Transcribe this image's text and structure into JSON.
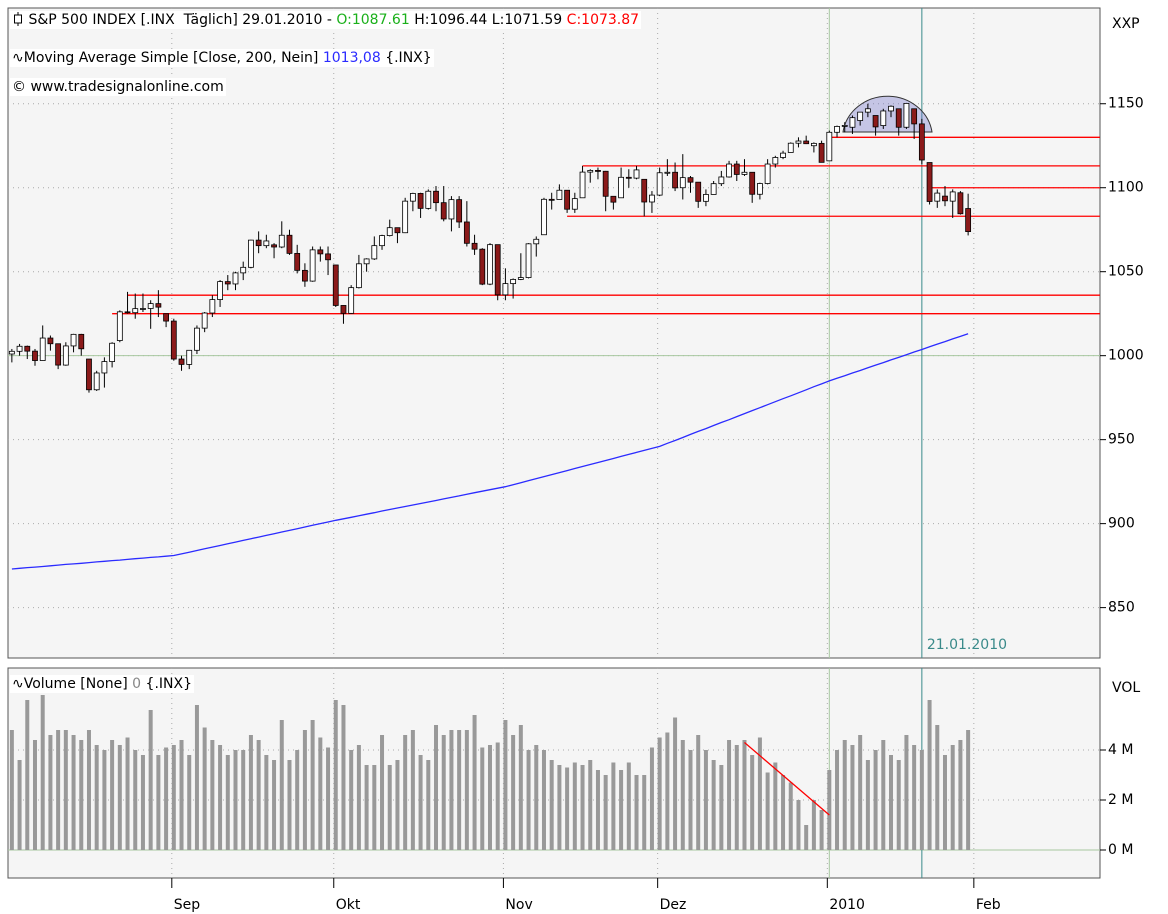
{
  "chart_data": {
    "type": "candlestick",
    "title": "S&P 500 INDEX [.INX  Täglich] 29.01.2010 -",
    "ohlc_labels": [
      "O:1087.61",
      "H:1096.44",
      "L:1071.59",
      "C:1073.87"
    ],
    "ma_name": "Moving Average Simple [Close, 200, Nein]",
    "ma_value_label": "1013,08",
    "symbol": "{.INX}",
    "copyright": "© www.tradesignalonline.com",
    "price_axis_label": "XXP",
    "volume_axis_label": "VOL",
    "volume_name": "Volume [None]",
    "volume_value_label": "0",
    "annotation": "21.01.2010",
    "annotation_index": 118,
    "year_index": 106,
    "up_color": "#ffffff",
    "down_color": "#8b1a1a",
    "ma_color": "#2b2bff",
    "volume_color": "#999999",
    "level_color": "#ff0000",
    "candles": [
      [
        1001,
        1004,
        996,
        1002.6
      ],
      [
        1002.6,
        1007,
        1000,
        1005.6
      ],
      [
        1005.6,
        1006,
        998,
        1002.7
      ],
      [
        1002.7,
        1004,
        994,
        997.1
      ],
      [
        997.1,
        1018,
        997,
        1010.5
      ],
      [
        1010.5,
        1012,
        1003,
        1007.1
      ],
      [
        1007.1,
        1007,
        992,
        994.4
      ],
      [
        994.4,
        1008,
        994,
        1005.8
      ],
      [
        1005.8,
        1013,
        1002,
        1012.7
      ],
      [
        1012.7,
        1013,
        1000,
        1004.1
      ],
      [
        998,
        998,
        978,
        979.7
      ],
      [
        979.7,
        991,
        979,
        989.7
      ],
      [
        989.7,
        999,
        981,
        996.5
      ],
      [
        996.5,
        1008,
        993,
        1007.4
      ],
      [
        1009,
        1027,
        1008,
        1026.1
      ],
      [
        1026.1,
        1038,
        1025,
        1025.6
      ],
      [
        1025.6,
        1037,
        1022,
        1028.0
      ],
      [
        1028,
        1037,
        1026,
        1028.1
      ],
      [
        1028.1,
        1033,
        1016,
        1031.0
      ],
      [
        1031,
        1039,
        1023,
        1028.9
      ],
      [
        1025,
        1025,
        1017,
        1020.6
      ],
      [
        1020.6,
        1022,
        997,
        998.0
      ],
      [
        998,
        1000,
        991,
        994.8
      ],
      [
        994.8,
        1003,
        992,
        1003.2
      ],
      [
        1003.2,
        1018,
        1001,
        1016.4
      ],
      [
        1016.4,
        1026,
        1014,
        1025.4
      ],
      [
        1025.4,
        1036,
        1023,
        1033.4
      ],
      [
        1033.4,
        1045,
        1029,
        1044.1
      ],
      [
        1044.1,
        1048,
        1039,
        1042.7
      ],
      [
        1042.7,
        1050,
        1039,
        1049.3
      ],
      [
        1049.3,
        1056,
        1045,
        1052.6
      ],
      [
        1052.6,
        1069,
        1052,
        1068.8
      ],
      [
        1068.8,
        1074,
        1061,
        1065.5
      ],
      [
        1065.5,
        1072,
        1064,
        1068.3
      ],
      [
        1066,
        1067,
        1058,
        1064.7
      ],
      [
        1064.7,
        1080,
        1064,
        1071.7
      ],
      [
        1071.7,
        1075,
        1060,
        1060.9
      ],
      [
        1060.9,
        1066,
        1049,
        1050.8
      ],
      [
        1050.8,
        1055,
        1041,
        1044.4
      ],
      [
        1044.4,
        1065,
        1044,
        1063.0
      ],
      [
        1063,
        1065,
        1056,
        1060.6
      ],
      [
        1060.6,
        1065,
        1048,
        1057.1
      ],
      [
        1054,
        1054,
        1029,
        1029.9
      ],
      [
        1029.9,
        1030,
        1019,
        1025.2
      ],
      [
        1025.2,
        1042,
        1025,
        1040.5
      ],
      [
        1040.5,
        1060,
        1040,
        1054.7
      ],
      [
        1054.7,
        1058,
        1050,
        1057.6
      ],
      [
        1057.6,
        1071,
        1057,
        1065.5
      ],
      [
        1065.5,
        1072,
        1063,
        1071.5
      ],
      [
        1071.5,
        1081,
        1071,
        1076.2
      ],
      [
        1076.2,
        1076,
        1067,
        1073.2
      ],
      [
        1073.2,
        1094,
        1073,
        1092.0
      ],
      [
        1092,
        1097,
        1086,
        1096.6
      ],
      [
        1096.6,
        1097,
        1082,
        1087.7
      ],
      [
        1087.7,
        1099,
        1087,
        1097.9
      ],
      [
        1097.9,
        1101,
        1086,
        1091.1
      ],
      [
        1091.1,
        1101,
        1080,
        1081.4
      ],
      [
        1081.4,
        1095,
        1074,
        1092.9
      ],
      [
        1092.9,
        1095,
        1076,
        1079.6
      ],
      [
        1079.6,
        1092,
        1065,
        1066.9
      ],
      [
        1066.9,
        1072,
        1060,
        1063.4
      ],
      [
        1063.4,
        1064,
        1042,
        1042.6
      ],
      [
        1042.6,
        1067,
        1042,
        1066.1
      ],
      [
        1066.1,
        1066,
        1033,
        1036.2
      ],
      [
        1036.2,
        1052,
        1033,
        1042.9
      ],
      [
        1042.9,
        1046,
        1034,
        1045.4
      ],
      [
        1045.4,
        1061,
        1045,
        1046.5
      ],
      [
        1046.5,
        1067,
        1046,
        1066.6
      ],
      [
        1066.6,
        1071,
        1059,
        1069.3
      ],
      [
        1072,
        1094,
        1072,
        1093.1
      ],
      [
        1093.1,
        1097,
        1087,
        1093.0
      ],
      [
        1093,
        1102,
        1093,
        1098.5
      ],
      [
        1098.5,
        1098,
        1085,
        1087.2
      ],
      [
        1087.2,
        1097,
        1085,
        1093.5
      ],
      [
        1094,
        1113,
        1094,
        1109.3
      ],
      [
        1109.3,
        1111,
        1103,
        1110.3
      ],
      [
        1110.3,
        1112,
        1105,
        1109.8
      ],
      [
        1109.8,
        1110,
        1086,
        1094.9
      ],
      [
        1094.9,
        1095,
        1087,
        1091.4
      ],
      [
        1094,
        1112,
        1094,
        1106.2
      ],
      [
        1106.2,
        1111,
        1100,
        1105.7
      ],
      [
        1105.7,
        1113,
        1105,
        1110.6
      ],
      [
        1105,
        1105,
        1083,
        1091.5
      ],
      [
        1091.5,
        1098,
        1085,
        1095.6
      ],
      [
        1095.6,
        1112,
        1095,
        1108.9
      ],
      [
        1108.9,
        1117,
        1107,
        1109.2
      ],
      [
        1109.2,
        1115,
        1098,
        1099.9
      ],
      [
        1100,
        1120,
        1093,
        1106.0
      ],
      [
        1106,
        1107,
        1097,
        1103.3
      ],
      [
        1103.3,
        1103,
        1088,
        1091.9
      ],
      [
        1091.9,
        1099,
        1089,
        1096.0
      ],
      [
        1096,
        1104,
        1096,
        1102.4
      ],
      [
        1102.4,
        1110,
        1101,
        1106.4
      ],
      [
        1106.4,
        1116,
        1106,
        1114.1
      ],
      [
        1114.1,
        1116,
        1104,
        1107.9
      ],
      [
        1107.9,
        1117,
        1107,
        1109.2
      ],
      [
        1109.2,
        1109,
        1091,
        1096.1
      ],
      [
        1096.1,
        1103,
        1093,
        1102.5
      ],
      [
        1102.5,
        1117,
        1102,
        1114.1
      ],
      [
        1114.1,
        1119,
        1112,
        1118.0
      ],
      [
        1118,
        1122,
        1117,
        1120.6
      ],
      [
        1121,
        1127,
        1121,
        1126.5
      ],
      [
        1126.5,
        1130,
        1124,
        1127.8
      ],
      [
        1127.8,
        1131,
        1126,
        1126.2
      ],
      [
        1125,
        1127,
        1121,
        1126.4
      ],
      [
        1126.4,
        1128,
        1115,
        1115.1
      ],
      [
        1116,
        1134,
        1116,
        1133.0
      ],
      [
        1133,
        1137,
        1130,
        1136.5
      ],
      [
        1136.5,
        1139,
        1133,
        1137.1
      ],
      [
        1136,
        1143,
        1132,
        1141.7
      ],
      [
        1140,
        1145,
        1137,
        1145.0
      ],
      [
        1145,
        1150,
        1142,
        1147.0
      ],
      [
        1143,
        1143,
        1131,
        1136.2
      ],
      [
        1137,
        1147,
        1135,
        1145.7
      ],
      [
        1145.7,
        1149,
        1142,
        1148.5
      ],
      [
        1147,
        1147,
        1131,
        1136.0
      ],
      [
        1136,
        1150.5,
        1135,
        1150.2
      ],
      [
        1147,
        1147,
        1129,
        1138.0
      ],
      [
        1138,
        1141,
        1114,
        1116.5
      ],
      [
        1115,
        1115,
        1090,
        1091.8
      ],
      [
        1092,
        1099,
        1088,
        1096.8
      ],
      [
        1095,
        1101,
        1089,
        1092.2
      ],
      [
        1092,
        1099,
        1082,
        1097.5
      ],
      [
        1097,
        1098,
        1084,
        1084.5
      ],
      [
        1087.61,
        1096.44,
        1071.59,
        1073.87
      ]
    ],
    "ma_values": [
      873,
      873.4,
      873.8,
      874.1,
      874.5,
      874.9,
      875.3,
      875.7,
      876,
      876.4,
      876.8,
      877.2,
      877.6,
      878,
      878.3,
      878.7,
      879.1,
      879.5,
      879.9,
      880.2,
      880.6,
      881,
      882,
      883,
      884,
      885,
      886,
      887,
      888,
      889,
      890,
      891,
      892,
      893,
      894,
      895,
      896,
      897,
      898,
      899,
      900,
      901,
      902,
      902.9,
      903.8,
      904.7,
      905.6,
      906.5,
      907.5,
      908.4,
      909.3,
      910.2,
      911.1,
      912,
      912.9,
      913.8,
      914.7,
      915.6,
      916.5,
      917.5,
      918.4,
      919.3,
      920.2,
      921.1,
      922,
      923.2,
      924.4,
      925.6,
      926.8,
      928,
      929.2,
      930.4,
      931.6,
      932.8,
      934,
      935.2,
      936.4,
      937.6,
      938.8,
      940,
      941.2,
      942.4,
      943.6,
      944.8,
      946,
      947.8,
      949.5,
      951.3,
      953.1,
      954.9,
      956.6,
      958.4,
      960.2,
      961.9,
      963.7,
      965.5,
      967.3,
      969,
      970.8,
      972.6,
      974.4,
      976.1,
      977.9,
      979.7,
      981.5,
      983.2,
      985,
      986.6,
      988.1,
      989.7,
      991.2,
      992.8,
      994.4,
      995.9,
      997.5,
      999,
      1000.6,
      1002.2,
      1003.7,
      1005.3,
      1006.9,
      1008.4,
      1010,
      1011.5,
      1013.08
    ],
    "volume": [
      4.8,
      3.6,
      6.0,
      4.4,
      6.2,
      4.6,
      4.8,
      4.8,
      4.6,
      4.4,
      4.8,
      4.2,
      4.0,
      4.4,
      4.2,
      4.5,
      4.0,
      3.8,
      5.6,
      3.8,
      4.1,
      4.2,
      4.4,
      3.8,
      5.8,
      4.9,
      4.4,
      4.2,
      3.8,
      4.0,
      4.0,
      4.6,
      4.4,
      3.8,
      3.6,
      5.2,
      3.6,
      4.0,
      4.8,
      5.2,
      4.5,
      4.1,
      6.0,
      5.8,
      4.0,
      4.2,
      3.4,
      3.4,
      4.6,
      3.4,
      3.6,
      4.6,
      4.8,
      3.8,
      3.6,
      5.0,
      4.6,
      4.8,
      4.8,
      4.8,
      5.4,
      4.1,
      4.2,
      4.3,
      5.2,
      4.6,
      5.0,
      4.0,
      4.2,
      4.0,
      3.6,
      3.4,
      3.3,
      3.5,
      3.4,
      3.6,
      3.2,
      3.0,
      3.5,
      3.2,
      3.5,
      3.0,
      3.0,
      4.1,
      4.5,
      4.7,
      5.3,
      4.4,
      4.0,
      4.6,
      4.0,
      3.6,
      3.4,
      4.4,
      4.2,
      4.4,
      3.8,
      4.5,
      3.1,
      3.5,
      3.0,
      2.7,
      2.0,
      1.0,
      2.0,
      1.6,
      3.2,
      4.0,
      4.4,
      4.2,
      4.6,
      3.6,
      4.0,
      4.4,
      3.8,
      3.6,
      4.6,
      4.2,
      4.0,
      6.0,
      5.0,
      3.8,
      4.2,
      4.4,
      4.8
    ],
    "levels": [
      {
        "value": 1130,
        "start": 106
      },
      {
        "value": 1113,
        "start": 74
      },
      {
        "value": 1100,
        "start": 119
      },
      {
        "value": 1083,
        "start": 72
      },
      {
        "value": 1036,
        "start": 15
      },
      {
        "value": 1025,
        "start": 13
      }
    ],
    "volume_trend": {
      "start": 95,
      "end": 106,
      "values": [
        4.3,
        1.4
      ]
    },
    "xlim": [
      -0.5,
      141.1
    ],
    "xticks": [
      {
        "value": 21,
        "label": "Sep"
      },
      {
        "value": 42,
        "label": "Okt"
      },
      {
        "value": 64,
        "label": "Nov"
      },
      {
        "value": 84,
        "label": "Dez"
      },
      {
        "value": 106,
        "label": "2010"
      },
      {
        "value": 125,
        "label": "Feb"
      }
    ],
    "ylim": [
      820,
      1207
    ],
    "yticks": [
      850,
      900,
      950,
      1000,
      1050,
      1100,
      1150
    ],
    "reference_value": 1000,
    "volume_ylim": [
      -1.12,
      7.28
    ],
    "volume_yticks": [
      {
        "value": 0,
        "label": "0 M"
      },
      {
        "value": 2,
        "label": "2 M"
      },
      {
        "value": 4,
        "label": "4 M"
      }
    ]
  }
}
